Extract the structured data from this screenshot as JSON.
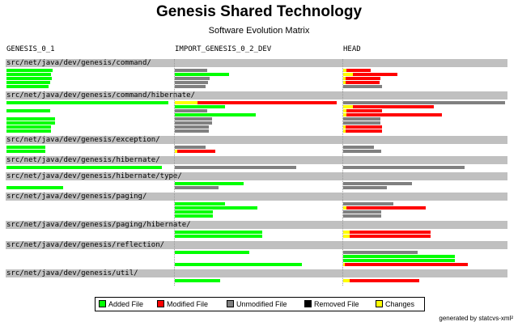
{
  "title": "Genesis Shared Technology",
  "subtitle": "Software Evolution Matrix",
  "columns": [
    "GENESIS_0_1",
    "IMPORT_GENESIS_0_2_DEV",
    "HEAD"
  ],
  "colors": {
    "added": "#00ff00",
    "modified": "#ff0000",
    "unmodified": "#808080",
    "removed": "#000000",
    "changes": "#ffff00",
    "dir_row": "#c0c0c0"
  },
  "legend": [
    {
      "key": "added",
      "label": "Added File"
    },
    {
      "key": "modified",
      "label": "Modified File"
    },
    {
      "key": "unmodified",
      "label": "Unmodified File"
    },
    {
      "key": "removed",
      "label": "Removed File"
    },
    {
      "key": "changes",
      "label": "Changes"
    }
  ],
  "footer": "generated by statcvs-xml²",
  "matrix": [
    {
      "dir": "src/net/java/dev/genesis/command/",
      "files": [
        [
          {
            "t": "added",
            "l": 57
          },
          {
            "t": "unmodified",
            "l": 40
          },
          {
            "t": "changes",
            "l": 4,
            "m": 30
          }
        ],
        [
          {
            "t": "added",
            "l": 55
          },
          {
            "t": "added",
            "l": 67
          },
          {
            "t": "changes",
            "l": 12,
            "m": 55
          }
        ],
        [
          {
            "t": "added",
            "l": 56
          },
          {
            "t": "unmodified",
            "l": 43
          },
          {
            "t": "changes",
            "l": 3,
            "m": 43
          }
        ],
        [
          {
            "t": "added",
            "l": 54
          },
          {
            "t": "unmodified",
            "l": 41
          },
          {
            "t": "changes",
            "l": 3,
            "m": 42
          }
        ],
        [
          {
            "t": "added",
            "l": 52
          },
          {
            "t": "unmodified",
            "l": 38
          },
          {
            "t": "unmodified",
            "l": 48
          }
        ]
      ]
    },
    {
      "dir": "src/net/java/dev/genesis/command/hibernate/",
      "files": [
        [
          {
            "t": "added",
            "l": 200
          },
          {
            "t": "changes",
            "l": 28,
            "m": 172
          },
          {
            "t": "unmodified",
            "l": 200
          }
        ],
        [
          {
            "t": "none",
            "l": 0
          },
          {
            "t": "added",
            "l": 62
          },
          {
            "t": "changes",
            "l": 12,
            "m": 100
          }
        ],
        [
          {
            "t": "added",
            "l": 54
          },
          {
            "t": "unmodified",
            "l": 40
          },
          {
            "t": "changes",
            "l": 4,
            "m": 44
          }
        ],
        [
          {
            "t": "none",
            "l": 0
          },
          {
            "t": "added",
            "l": 100
          },
          {
            "t": "changes",
            "l": 4,
            "m": 118
          }
        ],
        [
          {
            "t": "added",
            "l": 60
          },
          {
            "t": "unmodified",
            "l": 46
          },
          {
            "t": "unmodified",
            "l": 46
          }
        ],
        [
          {
            "t": "added",
            "l": 60
          },
          {
            "t": "unmodified",
            "l": 46
          },
          {
            "t": "unmodified",
            "l": 46
          }
        ],
        [
          {
            "t": "added",
            "l": 55
          },
          {
            "t": "unmodified",
            "l": 42
          },
          {
            "t": "changes",
            "l": 3,
            "m": 45
          }
        ],
        [
          {
            "t": "added",
            "l": 55
          },
          {
            "t": "unmodified",
            "l": 42
          },
          {
            "t": "changes",
            "l": 3,
            "m": 45
          }
        ]
      ]
    },
    {
      "dir": "src/net/java/dev/genesis/exception/",
      "files": [
        [
          {
            "t": "added",
            "l": 48
          },
          {
            "t": "unmodified",
            "l": 38
          },
          {
            "t": "unmodified",
            "l": 38
          }
        ],
        [
          {
            "t": "added",
            "l": 48
          },
          {
            "t": "changes",
            "l": 3,
            "m": 47
          },
          {
            "t": "unmodified",
            "l": 47
          }
        ]
      ]
    },
    {
      "dir": "src/net/java/dev/genesis/hibernate/",
      "files": [
        [
          {
            "t": "added",
            "l": 192
          },
          {
            "t": "unmodified",
            "l": 150
          },
          {
            "t": "unmodified",
            "l": 150
          }
        ]
      ]
    },
    {
      "dir": "src/net/java/dev/genesis/hibernate/type/",
      "files": [
        [
          {
            "t": "none",
            "l": 0
          },
          {
            "t": "added",
            "l": 85
          },
          {
            "t": "unmodified",
            "l": 85
          }
        ],
        [
          {
            "t": "added",
            "l": 70
          },
          {
            "t": "unmodified",
            "l": 54
          },
          {
            "t": "unmodified",
            "l": 54
          }
        ]
      ]
    },
    {
      "dir": "src/net/java/dev/genesis/paging/",
      "files": [
        [
          {
            "t": "none",
            "l": 0
          },
          {
            "t": "added",
            "l": 62
          },
          {
            "t": "unmodified",
            "l": 62
          }
        ],
        [
          {
            "t": "none",
            "l": 0
          },
          {
            "t": "added",
            "l": 102
          },
          {
            "t": "changes",
            "l": 4,
            "m": 98
          }
        ],
        [
          {
            "t": "none",
            "l": 0
          },
          {
            "t": "added",
            "l": 47
          },
          {
            "t": "unmodified",
            "l": 47
          }
        ],
        [
          {
            "t": "none",
            "l": 0
          },
          {
            "t": "added",
            "l": 47
          },
          {
            "t": "unmodified",
            "l": 47
          }
        ]
      ]
    },
    {
      "dir": "src/net/java/dev/genesis/paging/hibernate/",
      "files": [
        [
          {
            "t": "none",
            "l": 0
          },
          {
            "t": "added",
            "l": 108
          },
          {
            "t": "changes",
            "l": 8,
            "m": 100
          }
        ],
        [
          {
            "t": "none",
            "l": 0
          },
          {
            "t": "added",
            "l": 108
          },
          {
            "t": "changes",
            "l": 8,
            "m": 100
          }
        ]
      ]
    },
    {
      "dir": "src/net/java/dev/genesis/reflection/",
      "files": [
        [
          {
            "t": "none",
            "l": 0
          },
          {
            "t": "added",
            "l": 92
          },
          {
            "t": "unmodified",
            "l": 92
          }
        ],
        [
          {
            "t": "none",
            "l": 0
          },
          {
            "t": "none",
            "l": 0
          },
          {
            "t": "added",
            "l": 138
          }
        ],
        [
          {
            "t": "none",
            "l": 0
          },
          {
            "t": "none",
            "l": 0
          },
          {
            "t": "added",
            "l": 138
          }
        ],
        [
          {
            "t": "none",
            "l": 0
          },
          {
            "t": "added",
            "l": 157
          },
          {
            "t": "changes",
            "l": 2,
            "m": 152
          }
        ]
      ]
    },
    {
      "dir": "src/net/java/dev/genesis/util/",
      "files": [
        [
          {
            "t": "none",
            "l": 0
          },
          {
            "t": "added",
            "l": 56
          },
          {
            "t": "changes",
            "l": 8,
            "m": 86
          }
        ]
      ]
    }
  ]
}
